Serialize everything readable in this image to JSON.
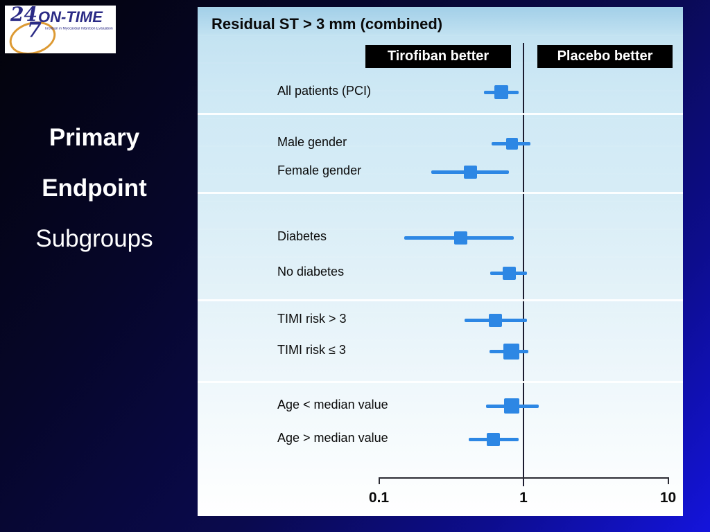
{
  "logo": {
    "num24": "24",
    "num7": "7",
    "brand": "ON-TIME",
    "tagline": "Tirofiban in Myocardial Infarction Evaluation"
  },
  "side_title": {
    "line1": "Primary",
    "line2": "Endpoint",
    "line3": "Subgroups"
  },
  "colors": {
    "marker_blue": "#2d87e4",
    "panel_top_blue": "#a2cfe8",
    "slide_bright_blue": "#1414dc",
    "label_box_bg": "#000000",
    "logo_navy": "#2a2a85",
    "logo_orange": "#dd9a33"
  },
  "chart_data": {
    "type": "scatter",
    "variant": "forest-plot",
    "title": "Residual ST > 3 mm (combined)",
    "left_region_label": "Tirofiban better",
    "right_region_label": "Placebo better",
    "x_scale": "log10",
    "x_ticks": [
      0.1,
      1,
      10
    ],
    "x_tick_labels": [
      "0.1",
      "1",
      "10"
    ],
    "xlim": [
      0.1,
      10
    ],
    "reference_line_x": 1,
    "grid": false,
    "legend": false,
    "groups": [
      {
        "rows": [
          {
            "label": "All patients (PCI)",
            "or": 0.7,
            "ci": [
              0.53,
              0.93
            ],
            "marker_size": 20
          }
        ]
      },
      {
        "rows": [
          {
            "label": "Male gender",
            "or": 0.83,
            "ci": [
              0.6,
              1.12
            ],
            "marker_size": 17
          },
          {
            "label": "Female gender",
            "or": 0.43,
            "ci": [
              0.23,
              0.79
            ],
            "marker_size": 19
          }
        ]
      },
      {
        "rows": [
          {
            "label": "Diabetes",
            "or": 0.37,
            "ci": [
              0.15,
              0.86
            ],
            "marker_size": 19
          },
          {
            "label": "No diabetes",
            "or": 0.8,
            "ci": [
              0.59,
              1.06
            ],
            "marker_size": 19
          }
        ]
      },
      {
        "rows": [
          {
            "label": "TIMI risk > 3",
            "or": 0.64,
            "ci": [
              0.39,
              1.06
            ],
            "marker_size": 19
          },
          {
            "label": "TIMI risk ≤ 3",
            "or": 0.82,
            "ci": [
              0.58,
              1.08
            ],
            "marker_size": 23
          }
        ]
      },
      {
        "rows": [
          {
            "label": "Age < median value",
            "or": 0.83,
            "ci": [
              0.55,
              1.27
            ],
            "marker_size": 22
          },
          {
            "label": "Age > median value",
            "or": 0.62,
            "ci": [
              0.42,
              0.93
            ],
            "marker_size": 19
          }
        ]
      }
    ]
  }
}
